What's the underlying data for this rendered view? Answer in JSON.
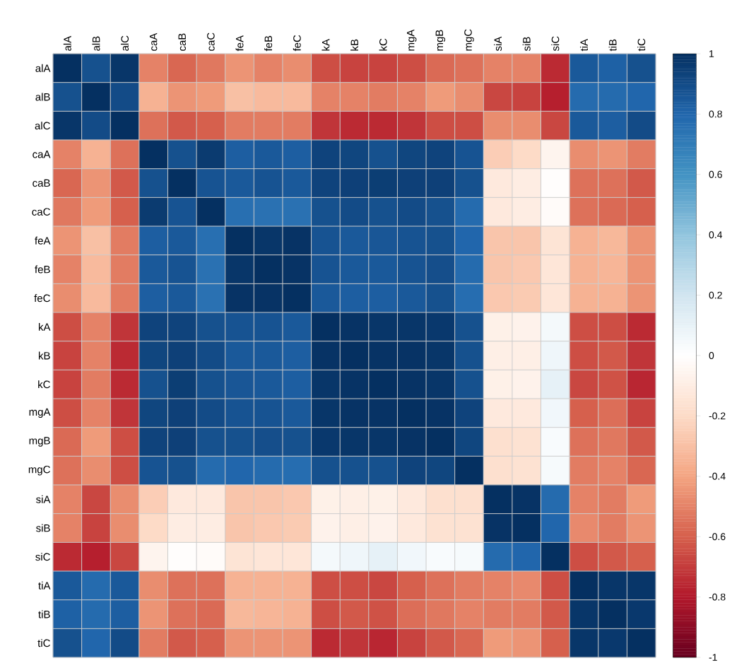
{
  "chart_data": {
    "type": "heatmap",
    "categories": [
      "alA",
      "alB",
      "alC",
      "caA",
      "caB",
      "caC",
      "feA",
      "feB",
      "feC",
      "kA",
      "kB",
      "kC",
      "mgA",
      "mgB",
      "mgC",
      "siA",
      "siB",
      "siC",
      "tiA",
      "tiB",
      "tiC"
    ],
    "y_categories": [
      "alA",
      "alB",
      "alC",
      "caA",
      "caB",
      "caC",
      "feA",
      "feB",
      "feC",
      "kA",
      "kB",
      "kC",
      "mgA",
      "mgB",
      "mgC",
      "siA",
      "siB",
      "siC",
      "tiA",
      "tiB",
      "tiC"
    ],
    "cells": [
      [
        1,
        0.88,
        0.98,
        -0.5,
        -0.58,
        -0.53,
        -0.45,
        -0.5,
        -0.47,
        -0.65,
        -0.68,
        -0.68,
        -0.65,
        -0.57,
        -0.55,
        -0.5,
        -0.5,
        -0.75,
        0.85,
        0.82,
        0.88
      ],
      [
        0.88,
        1,
        0.9,
        -0.35,
        -0.45,
        -0.43,
        -0.3,
        -0.32,
        -0.32,
        -0.5,
        -0.5,
        -0.52,
        -0.5,
        -0.43,
        -0.47,
        -0.67,
        -0.68,
        -0.78,
        0.78,
        0.78,
        0.8
      ],
      [
        0.98,
        0.9,
        1,
        -0.55,
        -0.62,
        -0.6,
        -0.52,
        -0.52,
        -0.52,
        -0.72,
        -0.75,
        -0.75,
        -0.72,
        -0.65,
        -0.65,
        -0.47,
        -0.47,
        -0.67,
        0.85,
        0.83,
        0.9
      ],
      [
        -0.5,
        -0.35,
        -0.55,
        1,
        0.88,
        0.96,
        0.83,
        0.85,
        0.83,
        0.93,
        0.92,
        0.88,
        0.92,
        0.93,
        0.87,
        -0.25,
        -0.2,
        -0.06,
        -0.47,
        -0.45,
        -0.52
      ],
      [
        -0.58,
        -0.45,
        -0.62,
        0.88,
        1,
        0.87,
        0.85,
        0.87,
        0.85,
        0.93,
        0.94,
        0.95,
        0.94,
        0.94,
        0.88,
        -0.12,
        -0.1,
        -0.01,
        -0.55,
        -0.55,
        -0.62
      ],
      [
        -0.53,
        -0.43,
        -0.6,
        0.96,
        0.87,
        1,
        0.76,
        0.75,
        0.75,
        0.88,
        0.9,
        0.88,
        0.9,
        0.88,
        0.78,
        -0.12,
        -0.1,
        -0.02,
        -0.55,
        -0.57,
        -0.6
      ],
      [
        -0.45,
        -0.3,
        -0.52,
        0.83,
        0.85,
        0.76,
        1,
        0.98,
        0.99,
        0.87,
        0.85,
        0.86,
        0.87,
        0.88,
        0.8,
        -0.28,
        -0.28,
        -0.15,
        -0.35,
        -0.33,
        -0.45
      ],
      [
        -0.5,
        -0.32,
        -0.52,
        0.85,
        0.87,
        0.75,
        0.98,
        1,
        0.99,
        0.87,
        0.85,
        0.85,
        0.87,
        0.89,
        0.78,
        -0.28,
        -0.27,
        -0.14,
        -0.35,
        -0.34,
        -0.45
      ],
      [
        -0.47,
        -0.32,
        -0.52,
        0.83,
        0.85,
        0.75,
        0.99,
        0.99,
        1,
        0.85,
        0.83,
        0.83,
        0.85,
        0.88,
        0.77,
        -0.27,
        -0.26,
        -0.14,
        -0.35,
        -0.35,
        -0.45
      ],
      [
        -0.65,
        -0.5,
        -0.72,
        0.93,
        0.93,
        0.88,
        0.87,
        0.87,
        0.85,
        1,
        0.99,
        0.98,
        0.98,
        0.97,
        0.88,
        -0.08,
        -0.07,
        0.05,
        -0.65,
        -0.65,
        -0.75
      ],
      [
        -0.68,
        -0.5,
        -0.75,
        0.92,
        0.94,
        0.9,
        0.85,
        0.85,
        0.83,
        0.99,
        1,
        0.99,
        0.99,
        0.98,
        0.88,
        -0.09,
        -0.09,
        0.07,
        -0.65,
        -0.62,
        -0.72
      ],
      [
        -0.68,
        -0.52,
        -0.75,
        0.88,
        0.95,
        0.88,
        0.86,
        0.85,
        0.83,
        0.98,
        0.99,
        1,
        0.99,
        0.98,
        0.88,
        -0.08,
        -0.07,
        0.11,
        -0.67,
        -0.64,
        -0.76
      ],
      [
        -0.65,
        -0.5,
        -0.72,
        0.92,
        0.94,
        0.9,
        0.87,
        0.87,
        0.85,
        0.98,
        0.99,
        0.99,
        1,
        0.99,
        0.93,
        -0.12,
        -0.12,
        0.06,
        -0.6,
        -0.56,
        -0.68
      ],
      [
        -0.57,
        -0.43,
        -0.65,
        0.93,
        0.94,
        0.88,
        0.88,
        0.89,
        0.88,
        0.97,
        0.98,
        0.98,
        0.99,
        1,
        0.92,
        -0.17,
        -0.16,
        0.03,
        -0.55,
        -0.53,
        -0.62
      ],
      [
        -0.55,
        -0.47,
        -0.65,
        0.87,
        0.88,
        0.78,
        0.8,
        0.78,
        0.77,
        0.88,
        0.88,
        0.88,
        0.93,
        0.92,
        1,
        -0.17,
        -0.16,
        0.04,
        -0.52,
        -0.5,
        -0.58
      ],
      [
        -0.5,
        -0.67,
        -0.47,
        -0.25,
        -0.12,
        -0.12,
        -0.28,
        -0.28,
        -0.27,
        -0.08,
        -0.09,
        -0.08,
        -0.12,
        -0.17,
        -0.17,
        1,
        0.99,
        0.78,
        -0.5,
        -0.52,
        -0.43
      ],
      [
        -0.5,
        -0.68,
        -0.47,
        -0.2,
        -0.1,
        -0.1,
        -0.28,
        -0.27,
        -0.26,
        -0.07,
        -0.09,
        -0.07,
        -0.12,
        -0.16,
        -0.16,
        0.99,
        1,
        0.8,
        -0.48,
        -0.52,
        -0.45
      ],
      [
        -0.75,
        -0.78,
        -0.67,
        -0.06,
        -0.01,
        -0.02,
        -0.15,
        -0.14,
        -0.14,
        0.05,
        0.07,
        0.11,
        0.06,
        0.03,
        0.04,
        0.78,
        0.8,
        1,
        -0.65,
        -0.62,
        -0.6
      ],
      [
        0.85,
        0.78,
        0.85,
        -0.47,
        -0.55,
        -0.55,
        -0.35,
        -0.35,
        -0.35,
        -0.65,
        -0.65,
        -0.67,
        -0.6,
        -0.55,
        -0.52,
        -0.5,
        -0.48,
        -0.65,
        1,
        0.98,
        0.98
      ],
      [
        0.82,
        0.78,
        0.83,
        -0.45,
        -0.55,
        -0.57,
        -0.33,
        -0.34,
        -0.35,
        -0.65,
        -0.62,
        -0.64,
        -0.56,
        -0.53,
        -0.5,
        -0.52,
        -0.52,
        -0.62,
        0.98,
        1,
        0.97
      ],
      [
        0.88,
        0.8,
        0.9,
        -0.52,
        -0.62,
        -0.6,
        -0.45,
        -0.45,
        -0.45,
        -0.75,
        -0.72,
        -0.76,
        -0.68,
        -0.62,
        -0.58,
        -0.43,
        -0.45,
        -0.6,
        0.98,
        0.97,
        1
      ]
    ],
    "clim": [
      -1,
      1
    ],
    "cticks": [
      -1,
      -0.8,
      -0.6,
      -0.4,
      -0.2,
      0,
      0.2,
      0.4,
      0.6,
      0.8,
      1
    ]
  }
}
